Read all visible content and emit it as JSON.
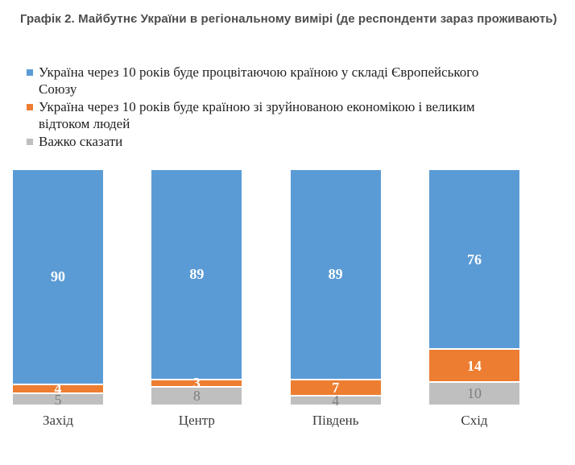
{
  "title": "Графік 2. Майбутнє України в регіональному вимірі (де респонденти зараз проживають)",
  "colors": {
    "series_blue": "#5B9BD5",
    "series_orange": "#ED7D31",
    "series_gray": "#BFBFBF",
    "value_label_light": "#FFFFFF",
    "value_label_muted": "#7F7F7F",
    "title_text": "#4D4D4D",
    "background": "#FFFFFF"
  },
  "legend": {
    "items": [
      {
        "color": "#5B9BD5",
        "lines": [
          "Україна через 10 років буде процвітаючою країною у складі Європейського",
          "Союзу"
        ]
      },
      {
        "color": "#ED7D31",
        "lines": [
          "Україна через 10 років буде країною зі зруйнованою економікою і великим",
          "відтоком людей"
        ]
      },
      {
        "color": "#BFBFBF",
        "lines": [
          "Важко сказати"
        ]
      }
    ]
  },
  "chart_data": {
    "type": "bar",
    "subtype": "stacked-column-100pct",
    "title": "Графік 2. Майбутнє України в регіональному вимірі (де респонденти зараз проживають)",
    "categories": [
      "Захід",
      "Центр",
      "Південь",
      "Схід"
    ],
    "series": [
      {
        "name": "Україна через 10 років буде процвітаючою країною у складі Європейського Союзу",
        "color": "#5B9BD5",
        "label_style": "light",
        "values": [
          90,
          89,
          89,
          76
        ]
      },
      {
        "name": "Україна через 10 років буде країною зі зруйнованою економікою і великим відтоком людей",
        "color": "#ED7D31",
        "label_style": "light",
        "values": [
          4,
          3,
          7,
          14
        ]
      },
      {
        "name": "Важко сказати",
        "color": "#BFBFBF",
        "label_style": "muted",
        "values": [
          5,
          8,
          4,
          10
        ]
      }
    ],
    "xlabel": "",
    "ylabel": "",
    "ylim": [
      0,
      100
    ],
    "grid": false,
    "axes_visible": false,
    "value_labels": true,
    "legend_position": "top-left"
  }
}
